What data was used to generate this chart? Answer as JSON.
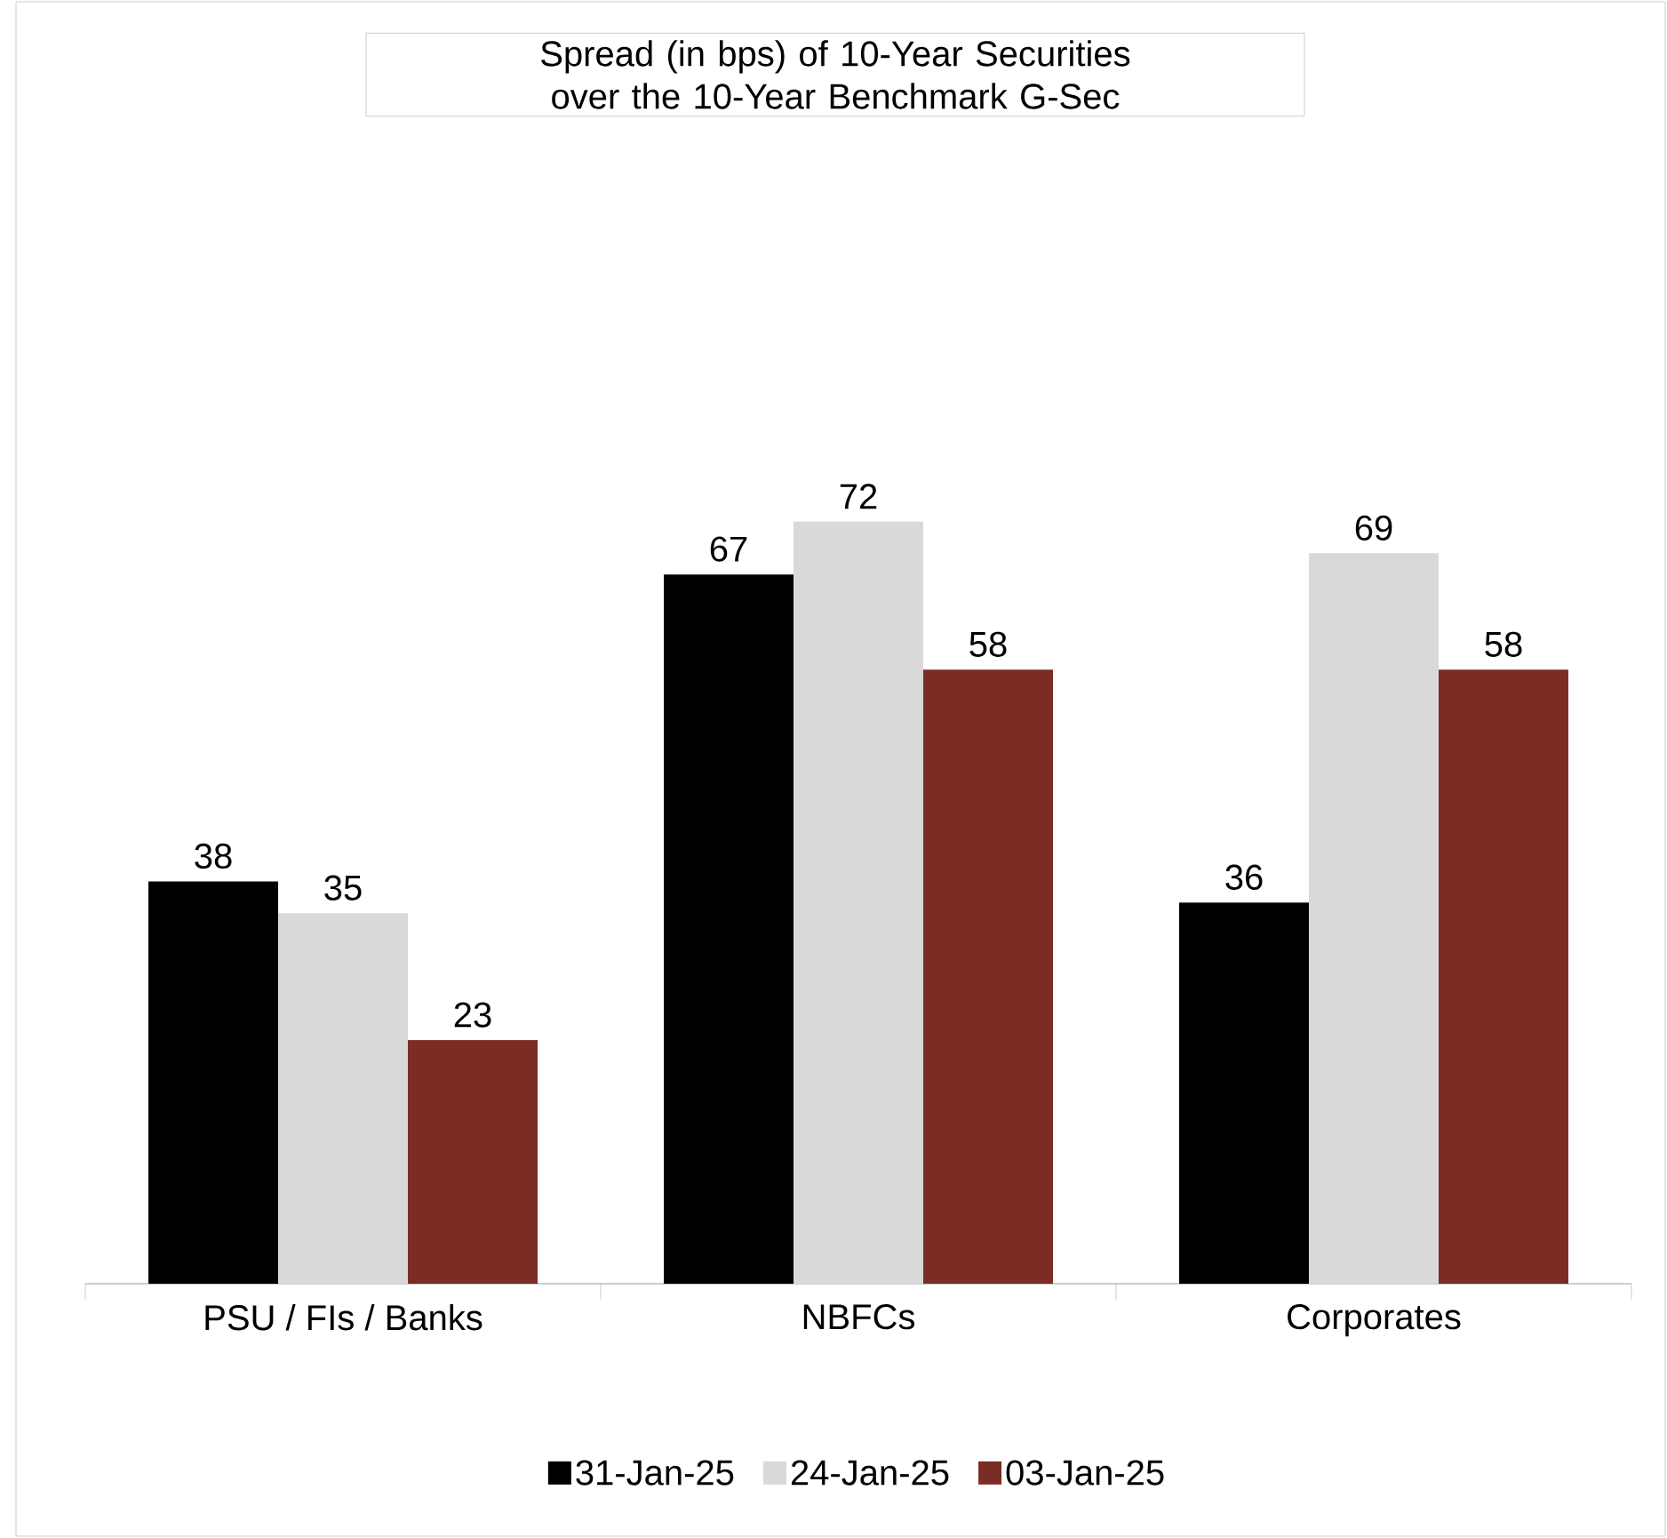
{
  "chart_data": {
    "type": "bar",
    "title": "Spread (in bps) of 10-Year Securities over the 10-Year Benchmark G-Sec",
    "categories": [
      "PSU / FIs / Banks",
      "NBFCs",
      "Corporates"
    ],
    "series": [
      {
        "name": "31-Jan-25",
        "color": "#000000",
        "values": [
          38,
          67,
          36
        ]
      },
      {
        "name": "24-Jan-25",
        "color": "#d9d9d9",
        "values": [
          35,
          72,
          69
        ]
      },
      {
        "name": "03-Jan-25",
        "color": "#7b2c24",
        "values": [
          23,
          58,
          58
        ]
      }
    ],
    "data_labels": true,
    "legend": "bottom"
  }
}
